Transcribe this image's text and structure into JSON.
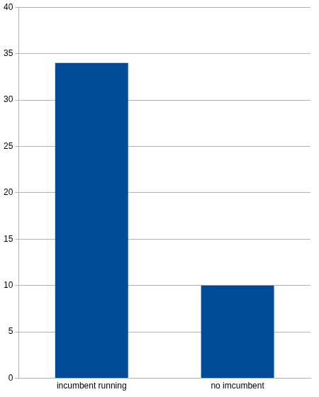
{
  "chart_data": {
    "type": "bar",
    "categories": [
      "incumbent running",
      "no imcumbent"
    ],
    "values": [
      34,
      10
    ],
    "color": "#004c99",
    "ylim": [
      0,
      40
    ],
    "yticks": [
      0,
      5,
      10,
      15,
      20,
      25,
      30,
      35,
      40
    ],
    "grid": true
  }
}
